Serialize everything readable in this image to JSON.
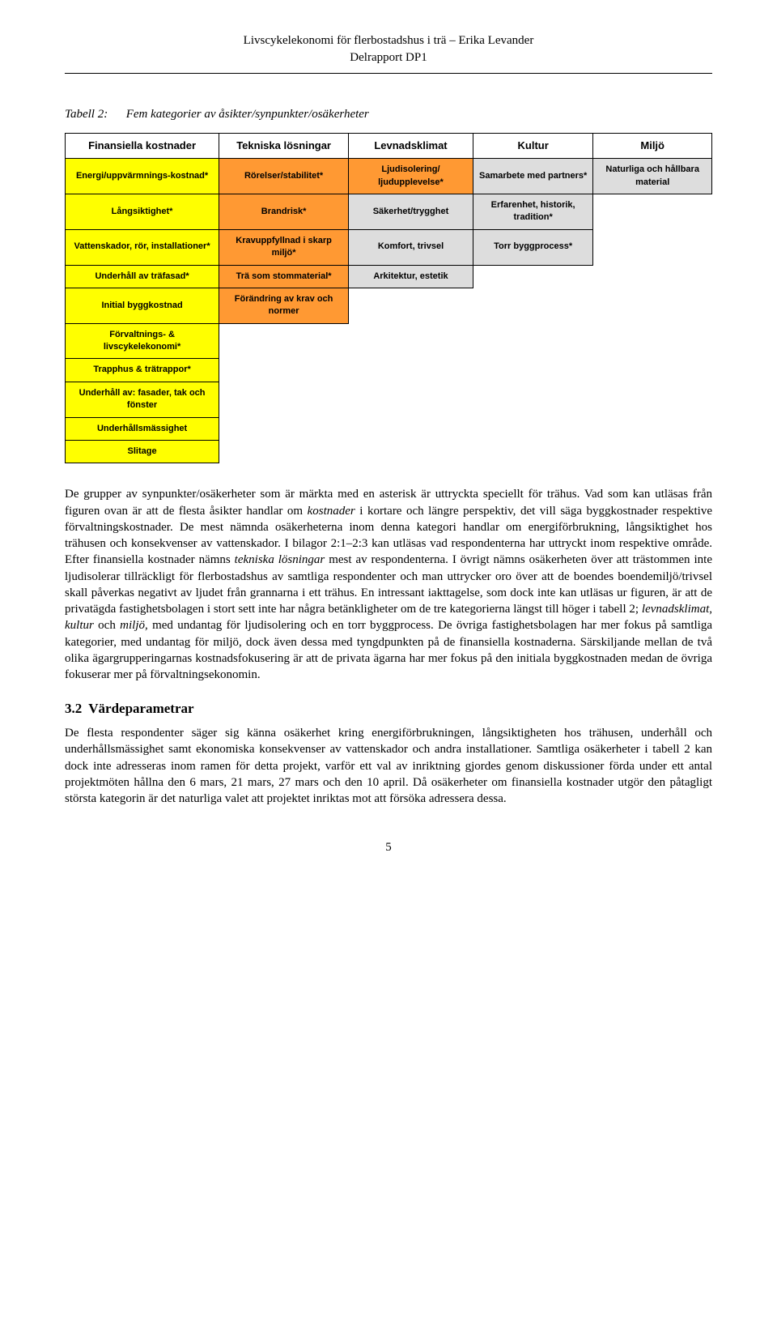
{
  "header": {
    "title_line1": "Livscykelekonomi för flerbostadshus i trä – Erika Levander",
    "title_line2": "Delrapport DP1"
  },
  "caption": {
    "label": "Tabell 2:",
    "text": "Fem kategorier av åsikter/synpunkter/osäkerheter"
  },
  "table": {
    "colors": {
      "yellow": "#ffff00",
      "orange": "#ff9933",
      "grey": "#dddddd"
    },
    "header_row": [
      "Finansiella kostnader",
      "Tekniska lösningar",
      "Levnadsklimat",
      "Kultur",
      "Miljö"
    ],
    "rows": [
      {
        "cells": [
          {
            "text": "Energi/uppvärmnings-kostnad*",
            "cls": "yellow"
          },
          {
            "text": "Rörelser/stabilitet*",
            "cls": "orange"
          },
          {
            "text": "Ljudisolering/ ljudupplevelse*",
            "cls": "orange"
          },
          {
            "text": "Samarbete med partners*",
            "cls": "grey"
          },
          {
            "text": "Naturliga och hållbara material",
            "cls": "grey"
          }
        ]
      },
      {
        "cells": [
          {
            "text": "Långsiktighet*",
            "cls": "yellow"
          },
          {
            "text": "Brandrisk*",
            "cls": "orange"
          },
          {
            "text": "Säkerhet/trygghet",
            "cls": "grey"
          },
          {
            "text": "Erfarenhet, historik, tradition*",
            "cls": "grey"
          },
          {
            "text": "",
            "cls": "noborder"
          }
        ]
      },
      {
        "cells": [
          {
            "text": "Vattenskador, rör, installationer*",
            "cls": "yellow"
          },
          {
            "text": "Kravuppfyllnad i skarp miljö*",
            "cls": "orange"
          },
          {
            "text": "Komfort, trivsel",
            "cls": "grey"
          },
          {
            "text": "Torr byggprocess*",
            "cls": "grey"
          },
          {
            "text": "",
            "cls": "noborder"
          }
        ]
      },
      {
        "cells": [
          {
            "text": "Underhåll av träfasad*",
            "cls": "yellow"
          },
          {
            "text": "Trä som stommaterial*",
            "cls": "orange"
          },
          {
            "text": "Arkitektur, estetik",
            "cls": "grey"
          },
          {
            "text": "",
            "cls": "noborder"
          },
          {
            "text": "",
            "cls": "noborder"
          }
        ]
      },
      {
        "cells": [
          {
            "text": "Initial byggkostnad",
            "cls": "yellow"
          },
          {
            "text": "Förändring av krav och normer",
            "cls": "orange"
          },
          {
            "text": "",
            "cls": "noborder"
          },
          {
            "text": "",
            "cls": "noborder"
          },
          {
            "text": "",
            "cls": "noborder"
          }
        ]
      },
      {
        "cells": [
          {
            "text": "Förvaltnings- & livscykelekonomi*",
            "cls": "yellow"
          },
          {
            "text": "",
            "cls": "noborder"
          },
          {
            "text": "",
            "cls": "noborder"
          },
          {
            "text": "",
            "cls": "noborder"
          },
          {
            "text": "",
            "cls": "noborder"
          }
        ]
      },
      {
        "cells": [
          {
            "text": "Trapphus & trätrappor*",
            "cls": "yellow"
          },
          {
            "text": "",
            "cls": "noborder"
          },
          {
            "text": "",
            "cls": "noborder"
          },
          {
            "text": "",
            "cls": "noborder"
          },
          {
            "text": "",
            "cls": "noborder"
          }
        ]
      },
      {
        "cells": [
          {
            "text": "Underhåll av: fasader, tak och fönster",
            "cls": "yellow"
          },
          {
            "text": "",
            "cls": "noborder"
          },
          {
            "text": "",
            "cls": "noborder"
          },
          {
            "text": "",
            "cls": "noborder"
          },
          {
            "text": "",
            "cls": "noborder"
          }
        ]
      },
      {
        "cells": [
          {
            "text": "Underhållsmässighet",
            "cls": "yellow"
          },
          {
            "text": "",
            "cls": "noborder"
          },
          {
            "text": "",
            "cls": "noborder"
          },
          {
            "text": "",
            "cls": "noborder"
          },
          {
            "text": "",
            "cls": "noborder"
          }
        ]
      },
      {
        "cells": [
          {
            "text": "Slitage",
            "cls": "yellow"
          },
          {
            "text": "",
            "cls": "noborder"
          },
          {
            "text": "",
            "cls": "noborder"
          },
          {
            "text": "",
            "cls": "noborder"
          },
          {
            "text": "",
            "cls": "noborder"
          }
        ]
      }
    ]
  },
  "paragraph1": {
    "p1a": "De grupper av synpunkter/osäkerheter som är märkta med en asterisk är uttryckta speciellt för trähus. Vad som kan utläsas från figuren ovan är att de flesta åsikter handlar om ",
    "i1": "kostnader",
    "p1b": " i kortare och längre perspektiv, det vill säga byggkostnader respektive förvaltningskostnader. De mest nämnda osäkerheterna inom denna kategori handlar om energiförbrukning, långsiktighet hos trähusen och konsekvenser av vattenskador. I bilagor 2:1–2:3 kan utläsas vad respondenterna har uttryckt inom respektive område. Efter finansiella kostnader nämns ",
    "i2": "tekniska lösningar",
    "p1c": " mest av respondenterna. I övrigt nämns osäkerheten över att trästommen inte ljudisolerar tillräckligt för flerbostadshus av samtliga respondenter och man uttrycker oro över att de boendes boendemiljö/trivsel skall påverkas negativt av ljudet från grannarna i ett trähus. En intressant iakttagelse, som dock inte kan utläsas ur figuren, är att de privatägda fastighetsbolagen i stort sett inte har några betänkligheter om de tre kategorierna längst till höger i tabell 2; ",
    "i3": "levnadsklimat",
    "comma1": ", ",
    "i4": "kultur",
    "p1d": " och ",
    "i5": "miljö",
    "p1e": ", med undantag för ljudisolering och en torr byggprocess. De övriga fastighetsbolagen har mer fokus på samtliga kategorier, med undantag för miljö, dock även dessa med tyngdpunkten på de finansiella kostnaderna. Särskiljande mellan de två olika ägargrupperingarnas kostnadsfokusering är att de privata ägarna har mer fokus på den initiala byggkostnaden medan de övriga fokuserar mer på förvaltningsekonomin."
  },
  "section": {
    "num": "3.2",
    "title": "Värdeparametrar"
  },
  "paragraph2": "De flesta respondenter säger sig känna osäkerhet kring energiförbrukningen, långsiktigheten hos trähusen, underhåll och underhållsmässighet samt ekonomiska konsekvenser av vattenskador och andra installationer. Samtliga osäkerheter i tabell 2 kan dock inte adresseras inom ramen för detta projekt, varför ett val av inriktning gjordes genom diskussioner förda under ett antal projektmöten hållna den 6 mars, 21 mars, 27 mars och den 10 april. Då osäkerheter om finansiella kostnader utgör den påtagligt största kategorin är det naturliga valet att projektet inriktas mot att försöka adressera dessa.",
  "page_number": "5"
}
